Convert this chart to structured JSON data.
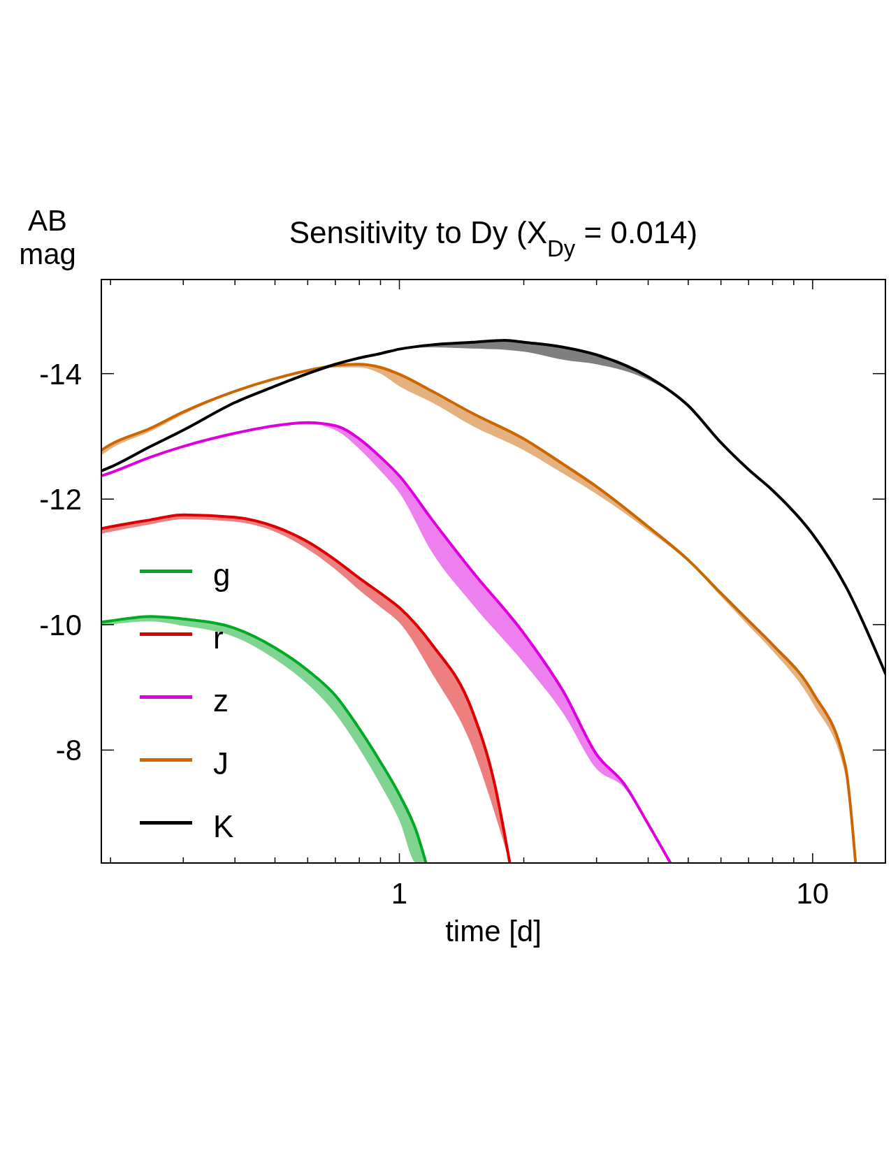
{
  "chart_data": {
    "type": "line",
    "title": "Sensitivity to Dy (X$_{Dy}$ = 0.014)",
    "xlabel": "time [d]",
    "ylabel": "AB mag",
    "log": "x",
    "xlim": [
      0.19,
      15
    ],
    "ylim": [
      -6.2,
      -15.5
    ],
    "xticks": [
      {
        "value": 0.2,
        "label": null
      },
      {
        "value": 0.3,
        "label": null
      },
      {
        "value": 0.4,
        "label": null
      },
      {
        "value": 0.5,
        "label": null
      },
      {
        "value": 0.6,
        "label": null
      },
      {
        "value": 0.7,
        "label": null
      },
      {
        "value": 0.8,
        "label": null
      },
      {
        "value": 0.9,
        "label": null
      },
      1,
      {
        "value": 2,
        "label": null
      },
      {
        "value": 3,
        "label": null
      },
      {
        "value": 4,
        "label": null
      },
      {
        "value": 5,
        "label": null
      },
      {
        "value": 6,
        "label": null
      },
      {
        "value": 7,
        "label": null
      },
      {
        "value": 8,
        "label": null
      },
      {
        "value": 9,
        "label": null
      },
      10
    ],
    "yticks": [
      -14,
      -12,
      -10,
      -8
    ],
    "grid": false,
    "legend": "center left",
    "series": [
      {
        "name": "g",
        "color": "#00aa22",
        "x": [
          0.19,
          0.2,
          0.25,
          0.3,
          0.4,
          0.5,
          0.6,
          0.7,
          0.8,
          0.9,
          1,
          1.1,
          1.16
        ],
        "values": [
          -10.04,
          -10.06,
          -10.13,
          -10.09,
          -9.94,
          -9.63,
          -9.27,
          -8.87,
          -8.34,
          -7.81,
          -7.29,
          -6.7,
          -6.2
        ],
        "lower": [
          -10.04,
          -10.06,
          -10.13,
          -10.09,
          -9.94,
          -9.63,
          -9.27,
          -8.87,
          -8.34,
          -7.81,
          -7.29,
          -6.7,
          -6.2
        ],
        "upper": [
          -9.98,
          -10.0,
          -10.05,
          -9.98,
          -9.8,
          -9.45,
          -9.05,
          -8.58,
          -8.02,
          -7.45,
          -6.88,
          -6.2,
          -6.2
        ]
      },
      {
        "name": "r",
        "color": "#dd0000",
        "x": [
          0.19,
          0.2,
          0.25,
          0.3,
          0.4,
          0.5,
          0.6,
          0.7,
          0.8,
          0.9,
          1,
          1.2,
          1.5,
          1.7,
          1.85
        ],
        "values": [
          -11.53,
          -11.56,
          -11.67,
          -11.75,
          -11.71,
          -11.56,
          -11.32,
          -11.03,
          -10.74,
          -10.5,
          -10.27,
          -9.68,
          -8.63,
          -7.46,
          -6.2
        ],
        "lower": [
          -11.53,
          -11.56,
          -11.67,
          -11.75,
          -11.71,
          -11.56,
          -11.32,
          -11.03,
          -10.74,
          -10.5,
          -10.27,
          -9.68,
          -8.63,
          -7.46,
          -6.2
        ],
        "upper": [
          -11.45,
          -11.48,
          -11.6,
          -11.68,
          -11.64,
          -11.48,
          -11.2,
          -10.88,
          -10.55,
          -10.28,
          -10.03,
          -9.22,
          -8.05,
          -7.0,
          -6.2
        ]
      },
      {
        "name": "z",
        "color": "#dd00dd",
        "x": [
          0.19,
          0.2,
          0.25,
          0.3,
          0.4,
          0.5,
          0.6,
          0.7,
          0.8,
          0.9,
          1,
          1.2,
          1.5,
          2,
          2.5,
          3,
          3.5,
          4,
          4.53
        ],
        "values": [
          -12.37,
          -12.42,
          -12.67,
          -12.84,
          -13.05,
          -13.17,
          -13.22,
          -13.17,
          -12.96,
          -12.67,
          -12.37,
          -11.67,
          -10.85,
          -9.86,
          -8.92,
          -7.93,
          -7.46,
          -6.82,
          -6.2
        ],
        "lower": [
          -12.37,
          -12.42,
          -12.67,
          -12.84,
          -13.05,
          -13.17,
          -13.22,
          -13.17,
          -12.96,
          -12.67,
          -12.37,
          -11.67,
          -10.85,
          -9.86,
          -8.92,
          -7.93,
          -7.46,
          -6.82,
          -6.2
        ],
        "upper": [
          -12.37,
          -12.42,
          -12.67,
          -12.84,
          -13.05,
          -13.17,
          -13.2,
          -13.1,
          -12.8,
          -12.45,
          -12.1,
          -11.15,
          -10.33,
          -9.39,
          -8.57,
          -7.7,
          -7.4,
          -6.82,
          -6.2
        ]
      },
      {
        "name": "J",
        "color": "#cc6600",
        "x": [
          0.19,
          0.2,
          0.25,
          0.3,
          0.4,
          0.5,
          0.6,
          0.7,
          0.8,
          0.9,
          1,
          1.2,
          1.5,
          2,
          2.5,
          3,
          4,
          5,
          6,
          7,
          8,
          10,
          12,
          12.7
        ],
        "values": [
          -12.78,
          -12.87,
          -13.13,
          -13.39,
          -13.72,
          -13.92,
          -14.05,
          -14.13,
          -14.15,
          -14.1,
          -13.99,
          -13.72,
          -13.37,
          -12.96,
          -12.55,
          -12.2,
          -11.56,
          -11.03,
          -10.5,
          -10.06,
          -9.68,
          -8.92,
          -7.75,
          -6.2
        ],
        "lower": [
          -12.78,
          -12.87,
          -13.13,
          -13.39,
          -13.72,
          -13.92,
          -14.05,
          -14.13,
          -14.15,
          -14.1,
          -13.99,
          -13.72,
          -13.37,
          -12.96,
          -12.55,
          -12.2,
          -11.56,
          -11.03,
          -10.5,
          -10.06,
          -9.68,
          -8.92,
          -7.75,
          -6.2
        ],
        "upper": [
          -12.7,
          -12.8,
          -13.08,
          -13.35,
          -13.7,
          -13.9,
          -14.03,
          -14.1,
          -14.1,
          -14.0,
          -13.8,
          -13.54,
          -13.17,
          -12.78,
          -12.4,
          -12.08,
          -11.5,
          -11.0,
          -10.45,
          -9.98,
          -9.58,
          -8.75,
          -7.6,
          -6.2
        ]
      },
      {
        "name": "K",
        "color": "#000000",
        "x": [
          0.19,
          0.2,
          0.25,
          0.3,
          0.4,
          0.5,
          0.6,
          0.7,
          0.8,
          0.9,
          1,
          1.2,
          1.5,
          1.8,
          2,
          2.5,
          3,
          4,
          5,
          6,
          7,
          8,
          10,
          12,
          15
        ],
        "values": [
          -12.45,
          -12.51,
          -12.84,
          -13.1,
          -13.54,
          -13.8,
          -14.0,
          -14.15,
          -14.25,
          -14.32,
          -14.39,
          -14.46,
          -14.5,
          -14.53,
          -14.5,
          -14.42,
          -14.3,
          -13.95,
          -13.49,
          -12.9,
          -12.47,
          -12.14,
          -11.44,
          -10.62,
          -9.22
        ],
        "lower": [
          -12.45,
          -12.51,
          -12.84,
          -13.1,
          -13.54,
          -13.8,
          -14.0,
          -14.15,
          -14.25,
          -14.32,
          -14.39,
          -14.46,
          -14.5,
          -14.53,
          -14.5,
          -14.42,
          -14.3,
          -13.95,
          -13.49,
          -12.9,
          -12.47,
          -12.14,
          -11.44,
          -10.62,
          -9.22
        ],
        "upper": [
          -12.45,
          -12.51,
          -12.84,
          -13.1,
          -13.54,
          -13.8,
          -14.0,
          -14.15,
          -14.25,
          -14.32,
          -14.39,
          -14.42,
          -14.4,
          -14.38,
          -14.35,
          -14.22,
          -14.15,
          -13.9,
          -13.49,
          -12.9,
          -12.47,
          -12.14,
          -11.44,
          -10.62,
          -9.22
        ]
      }
    ]
  }
}
